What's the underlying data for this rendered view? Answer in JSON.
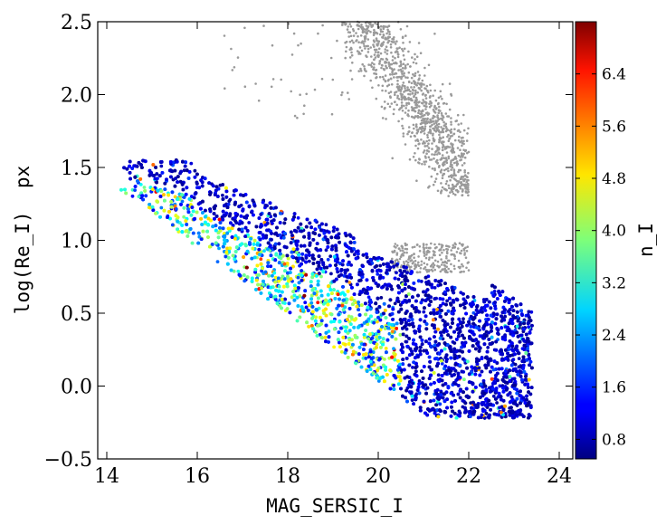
{
  "chart_data": {
    "type": "scatter",
    "title": "",
    "xlabel": "MAG_SERSIC_I",
    "ylabel": "log(Re_I)  px",
    "xlim": [
      13.8,
      24.3
    ],
    "ylim": [
      -0.5,
      2.5
    ],
    "xticks": [
      "14",
      "16",
      "18",
      "20",
      "22",
      "24"
    ],
    "yticks": [
      "−0.5",
      "0.0",
      "0.5",
      "1.0",
      "1.5",
      "2.0",
      "2.5"
    ],
    "grid": false,
    "colorbar": {
      "label": "n_I",
      "range": [
        0.5,
        7.2
      ],
      "ticks": [
        "0.8",
        "1.6",
        "2.4",
        "3.2",
        "4.0",
        "4.8",
        "5.6",
        "6.4"
      ],
      "colormap": "jet"
    },
    "series": [
      {
        "kind": "gray-cluster",
        "color": "#999999",
        "description_points": [
          {
            "x": 19.5,
            "y": 2.45
          },
          {
            "x": 20.2,
            "y": 2.35
          },
          {
            "x": 20.5,
            "y": 2.1
          },
          {
            "x": 20.8,
            "y": 1.9
          },
          {
            "x": 21.0,
            "y": 1.7
          },
          {
            "x": 21.2,
            "y": 1.55
          },
          {
            "x": 21.4,
            "y": 1.45
          },
          {
            "x": 21.6,
            "y": 1.38
          },
          {
            "x": 21.8,
            "y": 1.35
          },
          {
            "x": 21.0,
            "y": 0.95
          },
          {
            "x": 21.5,
            "y": 0.9
          }
        ]
      },
      {
        "kind": "colored-main",
        "color_by": "n_I",
        "description_points": [
          {
            "x": 14.5,
            "y": 1.5,
            "n": 2.5
          },
          {
            "x": 16.0,
            "y": 1.2,
            "n": 1.2
          },
          {
            "x": 16.0,
            "y": 0.9,
            "n": 4.5
          },
          {
            "x": 17.0,
            "y": 0.7,
            "n": 3.5
          },
          {
            "x": 18.0,
            "y": 0.4,
            "n": 3.0
          },
          {
            "x": 19.0,
            "y": 0.1,
            "n": 4.5
          },
          {
            "x": 19.5,
            "y": 1.0,
            "n": 0.8
          },
          {
            "x": 21.0,
            "y": 0.6,
            "n": 1.0
          },
          {
            "x": 22.0,
            "y": 0.3,
            "n": 1.0
          },
          {
            "x": 23.0,
            "y": 0.1,
            "n": 1.2
          }
        ]
      }
    ]
  }
}
